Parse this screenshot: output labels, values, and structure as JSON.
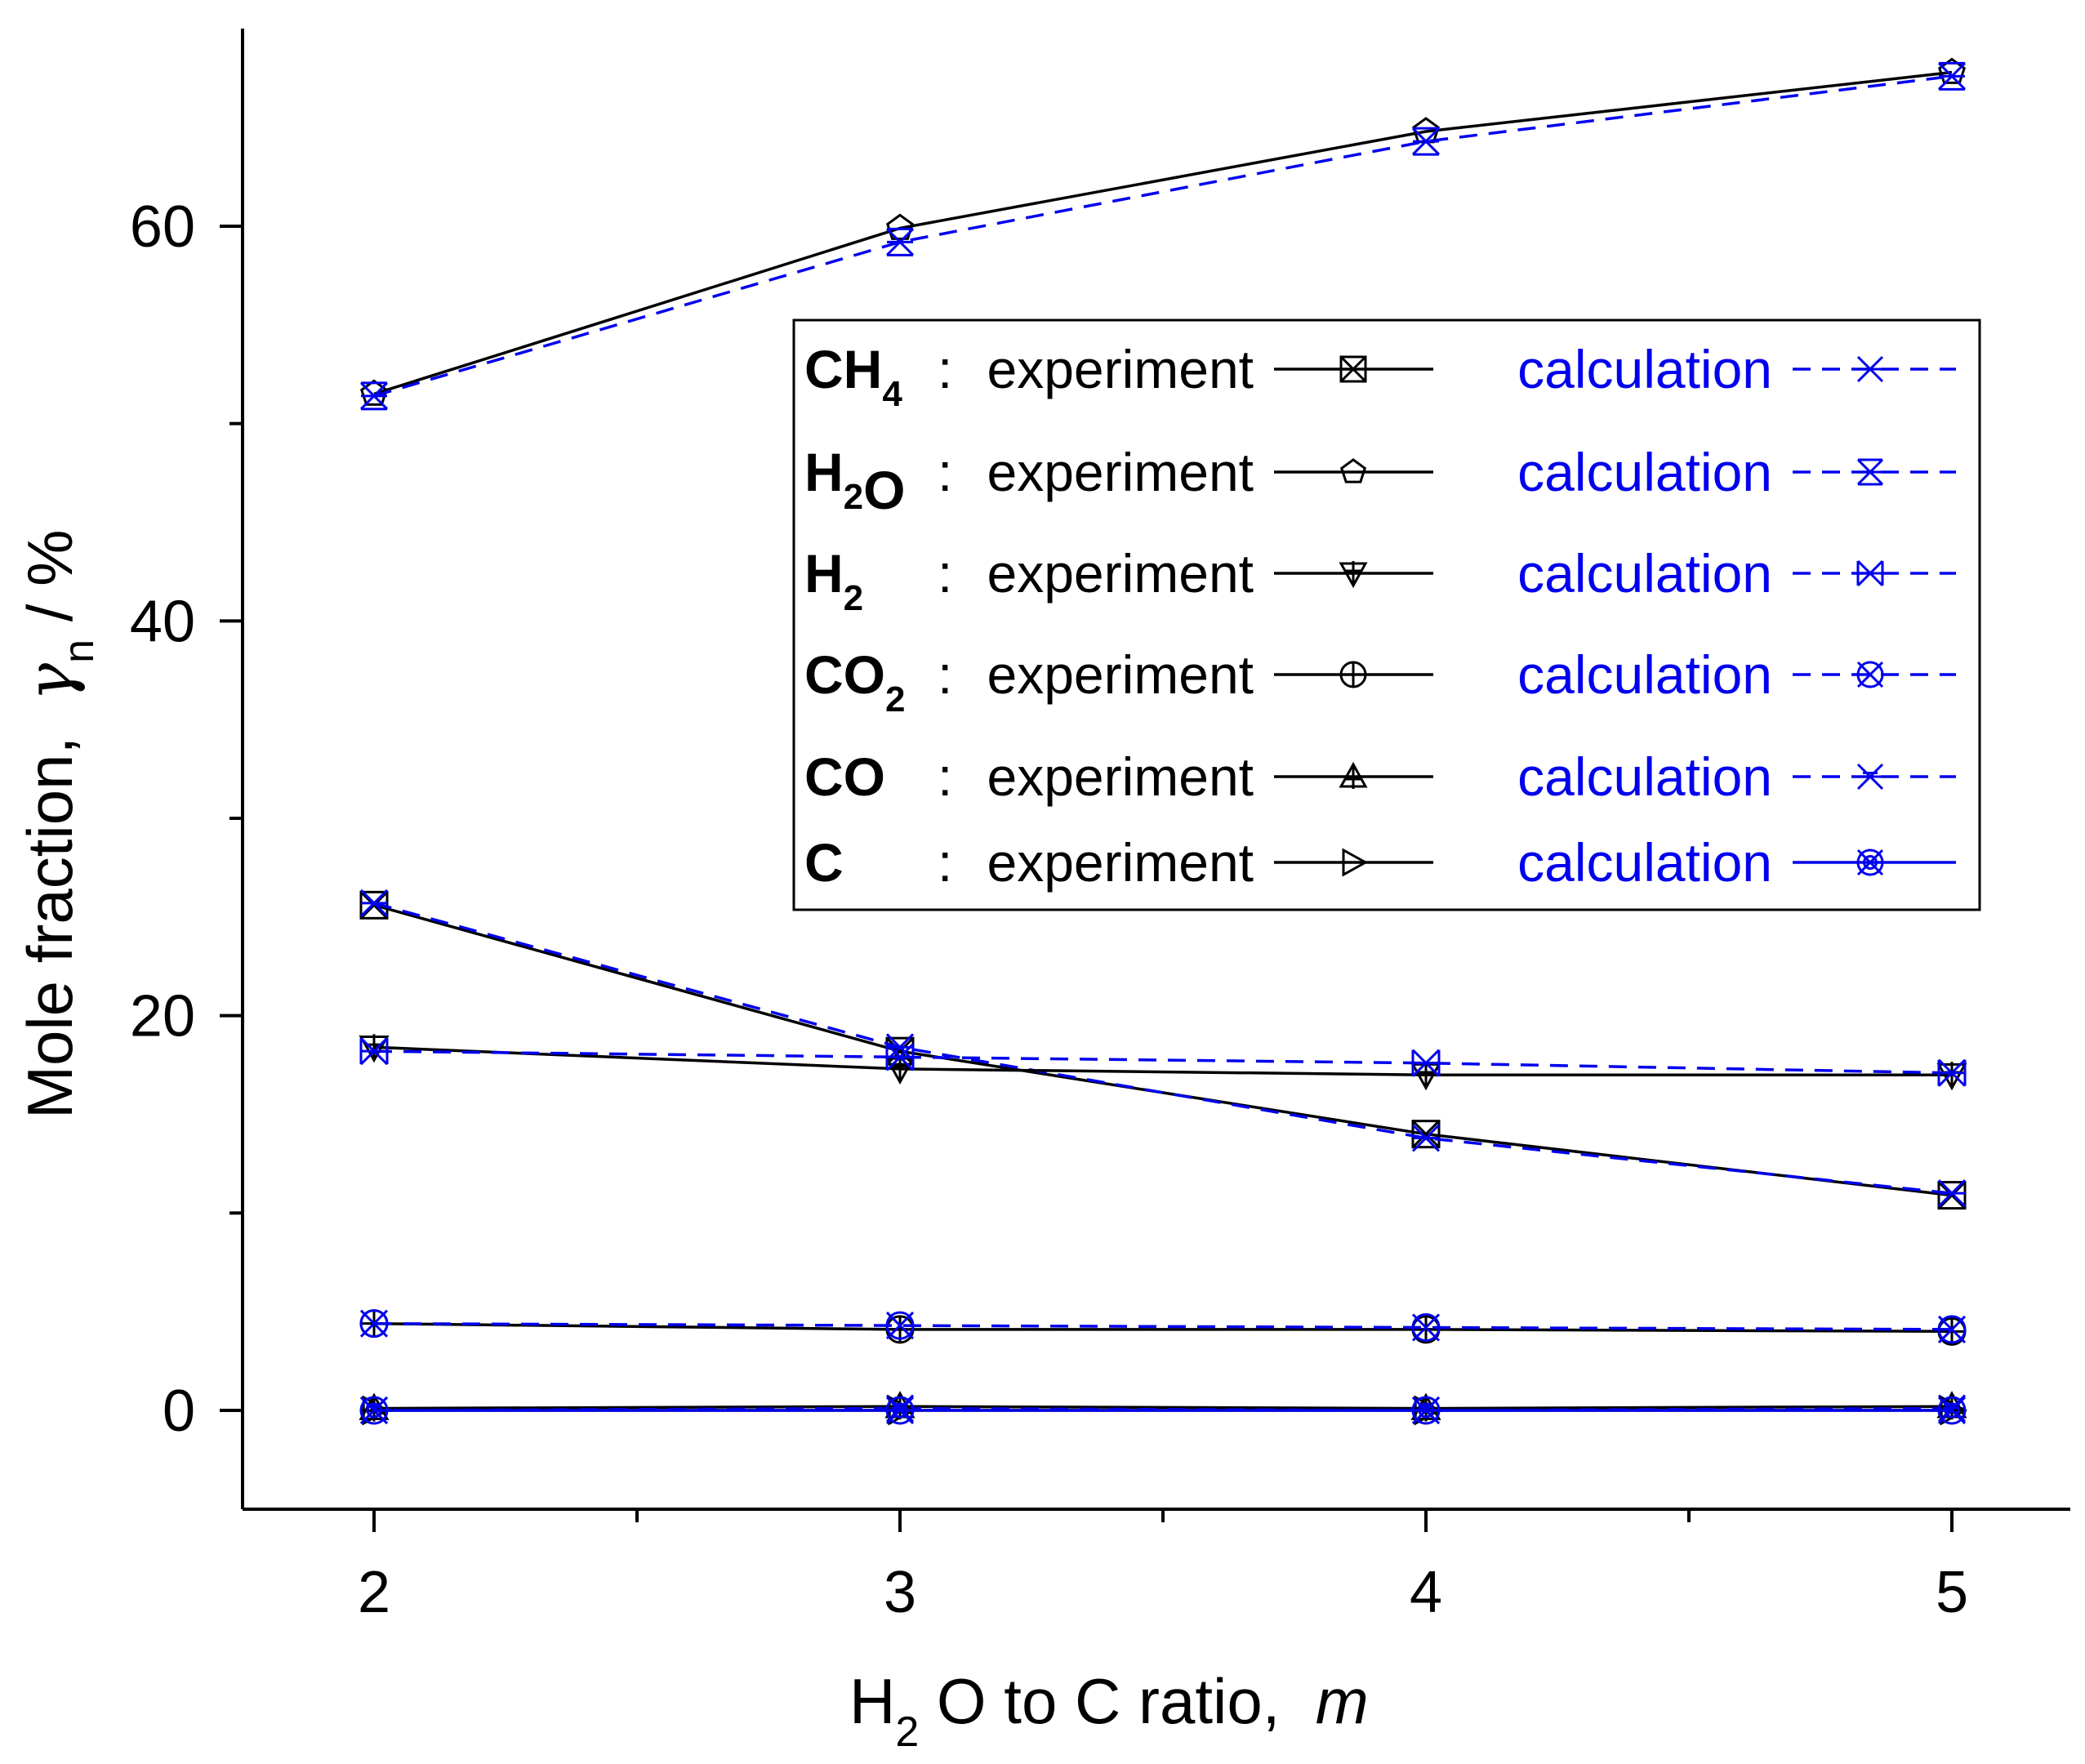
{
  "chart_data": {
    "type": "line",
    "title": "",
    "xlabel": "H2 O to C ratio, m",
    "xlabel_parts": {
      "pre": "H",
      "sub": "2",
      "mid": " O to C ratio,  ",
      "italic": "m"
    },
    "ylabel": "Mole fraction, γn / %",
    "ylabel_parts": {
      "pre": "Mole fraction,  ",
      "gamma": "γ",
      "sub": "n",
      "post": " / %"
    },
    "x": [
      2,
      3,
      4,
      5
    ],
    "x_ticks": [
      "2",
      "3",
      "4",
      "5"
    ],
    "y_ticks": [
      "0",
      "20",
      "40",
      "60"
    ],
    "xlim": [
      1.75,
      5.25
    ],
    "ylim": [
      -5,
      70
    ],
    "legend_position": "top-right",
    "series": [
      {
        "name": "CH4: experiment",
        "species": "CH",
        "sub": "4",
        "kind": "experiment",
        "marker": "square-x",
        "values": [
          25.6,
          18.2,
          14.0,
          10.9
        ]
      },
      {
        "name": "CH4: calculation",
        "species": "CH",
        "sub": "4",
        "kind": "calculation",
        "marker": "x-cross",
        "values": [
          25.7,
          18.4,
          13.8,
          11.0
        ]
      },
      {
        "name": "H2O: experiment",
        "species": "H",
        "sub": "2",
        "suffix": "O",
        "kind": "experiment",
        "marker": "pentagon",
        "values": [
          51.5,
          59.9,
          64.8,
          67.8
        ]
      },
      {
        "name": "H2O: calculation",
        "species": "H",
        "sub": "2",
        "suffix": "O",
        "kind": "calculation",
        "marker": "hourglass-x",
        "values": [
          51.4,
          59.2,
          64.3,
          67.6
        ]
      },
      {
        "name": "H2: experiment",
        "species": "H",
        "sub": "2",
        "kind": "experiment",
        "marker": "triangle-down",
        "values": [
          18.4,
          17.3,
          17.0,
          17.0
        ]
      },
      {
        "name": "H2: calculation",
        "species": "H",
        "sub": "2",
        "kind": "calculation",
        "marker": "bowtie-x",
        "values": [
          18.2,
          17.9,
          17.6,
          17.1
        ]
      },
      {
        "name": "CO2: experiment",
        "species": "CO",
        "sub": "2",
        "kind": "experiment",
        "marker": "circle-plus",
        "values": [
          4.4,
          4.1,
          4.1,
          4.0
        ]
      },
      {
        "name": "CO2: calculation",
        "species": "CO",
        "sub": "2",
        "kind": "calculation",
        "marker": "circle-x",
        "values": [
          4.4,
          4.3,
          4.2,
          4.1
        ]
      },
      {
        "name": "CO: experiment",
        "species": "CO",
        "kind": "experiment",
        "marker": "triangle-up",
        "values": [
          0.1,
          0.2,
          0.1,
          0.2
        ]
      },
      {
        "name": "CO: calculation",
        "species": "CO",
        "kind": "calculation",
        "marker": "star-x",
        "values": [
          0.0,
          0.1,
          0.0,
          0.1
        ]
      },
      {
        "name": "C: experiment",
        "species": "C",
        "kind": "experiment",
        "marker": "triangle-right",
        "values": [
          0.0,
          0.0,
          0.0,
          0.0
        ]
      },
      {
        "name": "C: calculation",
        "species": "C",
        "kind": "calculation",
        "marker": "circle-xx",
        "values": [
          0.0,
          0.0,
          0.0,
          0.0
        ]
      }
    ],
    "legend": {
      "experiment_label": "experiment",
      "calculation_label": "calculation",
      "separator": ":"
    }
  },
  "colors": {
    "experiment": "#000000",
    "calculation": "#0000ee"
  }
}
